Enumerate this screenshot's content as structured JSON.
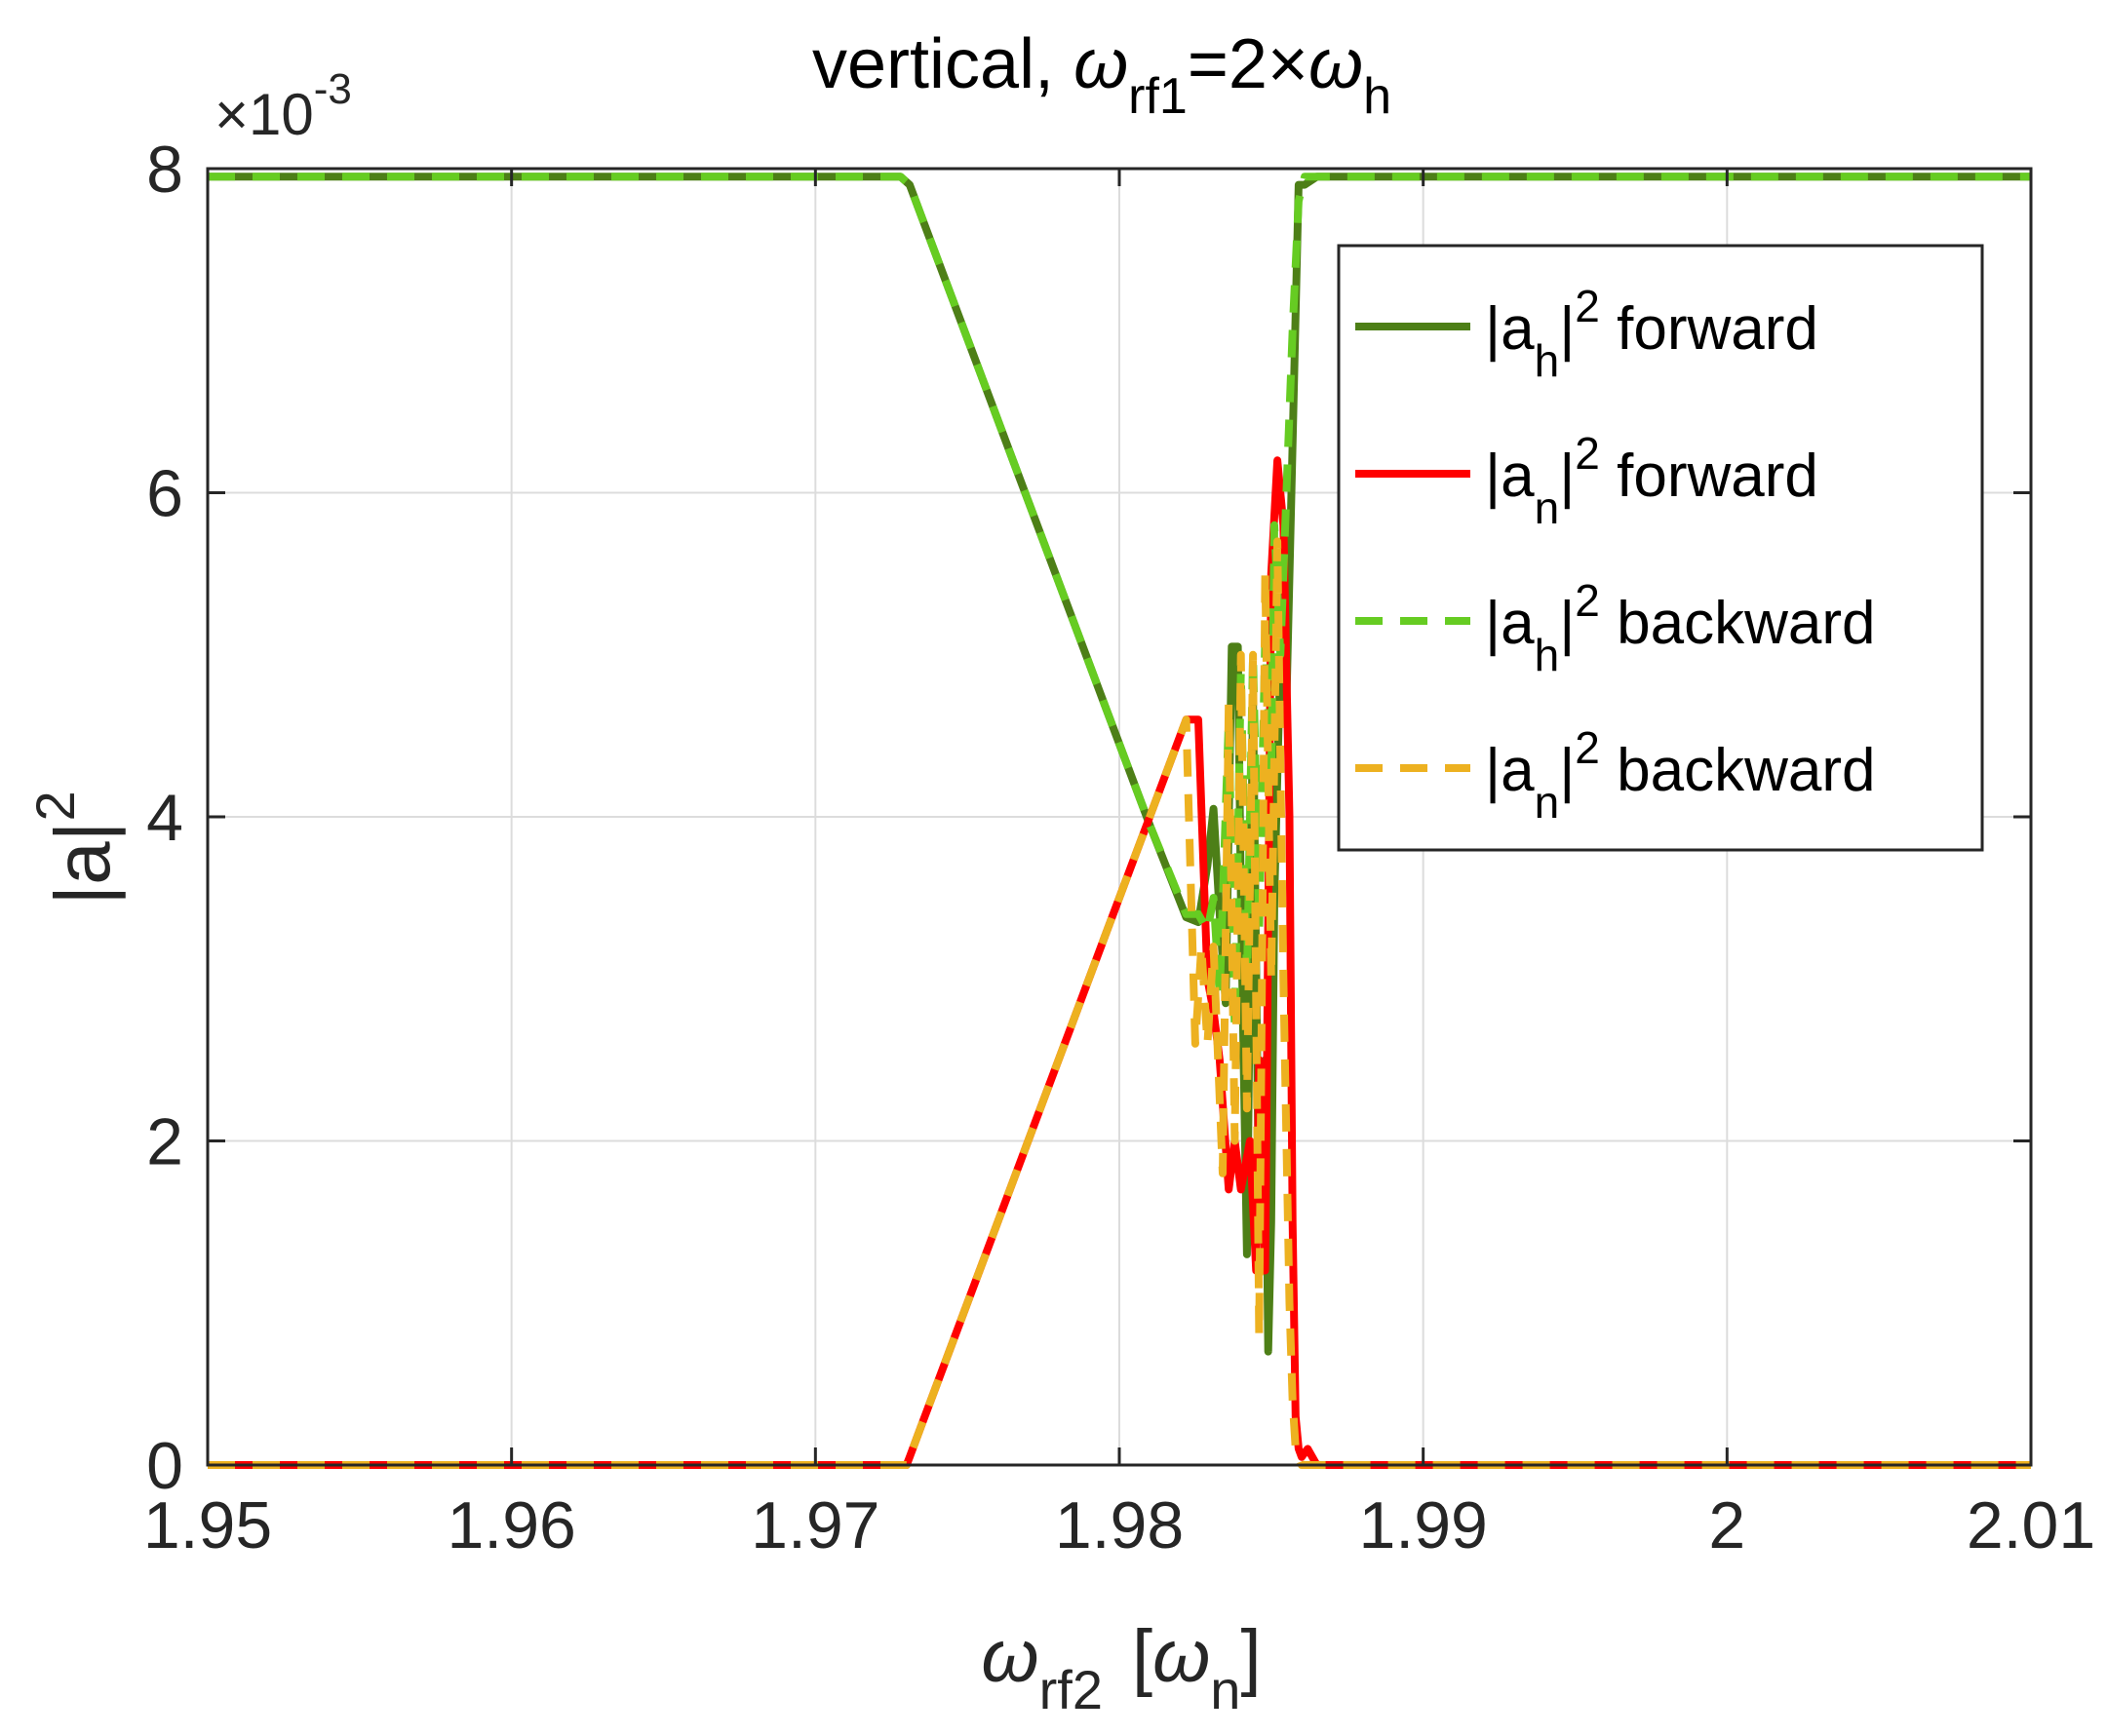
{
  "chart_data": {
    "type": "line",
    "title": {
      "prefix": "vertical, ",
      "omega": "ω",
      "sub1": "rf1",
      "mid": "=2×",
      "omega2": "ω",
      "sub2": "h"
    },
    "xlabel": {
      "omega": "ω",
      "sub": "rf2",
      "bracket_open": "[",
      "omega2": "ω",
      "sub2": "n",
      "bracket_close": "]"
    },
    "ylabel": {
      "base": "|a|",
      "sup": "2"
    },
    "y_exponent": {
      "base": "×10",
      "sup": "-3"
    },
    "xlim": [
      1.95,
      2.01
    ],
    "ylim": [
      0,
      8
    ],
    "xticks": [
      1.95,
      1.96,
      1.97,
      1.98,
      1.99,
      2.0,
      2.01
    ],
    "xtick_labels": [
      "1.95",
      "1.96",
      "1.97",
      "1.98",
      "1.99",
      "2",
      "2.01"
    ],
    "yticks": [
      0,
      2,
      4,
      6,
      8
    ],
    "ytick_labels": [
      "0",
      "2",
      "4",
      "6",
      "8"
    ],
    "grid": true,
    "legend_position": "top-right",
    "series": [
      {
        "name": "forward",
        "legend": {
          "base": "|a",
          "sub": "h",
          "mid": "|",
          "sup": "2",
          "tail": " forward"
        },
        "color": "#4d7f17",
        "dash": "solid",
        "x": [
          1.95,
          1.9728,
          1.9731,
          1.9735,
          1.9745,
          1.9755,
          1.9765,
          1.9775,
          1.9785,
          1.9795,
          1.98,
          1.981,
          1.9822,
          1.9826,
          1.9829,
          1.9831,
          1.9833,
          1.9835,
          1.9837,
          1.9839,
          1.984,
          1.9842,
          1.9844,
          1.9846,
          1.9848,
          1.9849,
          1.985,
          1.9851,
          1.9853,
          1.9855,
          1.9857,
          1.9859,
          1.9861,
          1.9865,
          2.01
        ],
        "y": [
          7.95,
          7.95,
          7.9,
          7.7,
          7.2,
          6.7,
          6.2,
          5.7,
          5.2,
          4.7,
          4.45,
          3.95,
          3.38,
          3.35,
          3.7,
          4.05,
          3.4,
          2.85,
          5.05,
          5.05,
          3.5,
          1.3,
          4.75,
          1.5,
          2.5,
          0.7,
          1.5,
          3.5,
          5.0,
          4.7,
          6.3,
          7.9,
          7.9,
          7.95,
          7.95
        ]
      },
      {
        "name": "forward",
        "legend": {
          "base": "|a",
          "sub": "n",
          "mid": "|",
          "sup": "2",
          "tail": " forward"
        },
        "color": "#ff0000",
        "dash": "solid",
        "x": [
          1.95,
          1.973,
          1.9731,
          1.9735,
          1.9745,
          1.9755,
          1.9765,
          1.9775,
          1.9785,
          1.9795,
          1.98,
          1.981,
          1.9822,
          1.9826,
          1.9829,
          1.9831,
          1.9833,
          1.9836,
          1.9838,
          1.984,
          1.9843,
          1.9845,
          1.9846,
          1.9848,
          1.985,
          1.9852,
          1.9854,
          1.9856,
          1.9857,
          1.9858,
          1.9859,
          1.986,
          1.9862,
          1.9865,
          2.01
        ],
        "y": [
          0.0,
          0.0,
          0.05,
          0.25,
          0.75,
          1.25,
          1.75,
          2.25,
          2.75,
          3.25,
          3.5,
          4.0,
          4.6,
          4.6,
          3.0,
          2.8,
          2.5,
          1.7,
          2.0,
          1.7,
          2.0,
          1.2,
          2.5,
          1.2,
          5.5,
          6.2,
          5.8,
          4.0,
          1.5,
          0.3,
          0.1,
          0.05,
          0.1,
          0.0,
          0.0
        ]
      },
      {
        "name": "backward",
        "legend": {
          "base": "|a",
          "sub": "h",
          "mid": "|",
          "sup": "2",
          "tail": " backward"
        },
        "color": "#66cc22",
        "dash": "dashed",
        "x": [
          1.95,
          1.9728,
          1.9731,
          1.9735,
          1.9745,
          1.9755,
          1.9765,
          1.9775,
          1.9785,
          1.9795,
          1.98,
          1.981,
          1.9822,
          1.9826,
          1.9829,
          1.9831,
          1.9833,
          1.9836,
          1.9838,
          1.984,
          1.9842,
          1.9844,
          1.9846,
          1.9848,
          1.985,
          1.9851,
          1.9853,
          1.9855,
          1.9857,
          1.9859,
          1.9861,
          1.9865,
          2.01
        ],
        "y": [
          7.95,
          7.95,
          7.9,
          7.7,
          7.2,
          6.7,
          6.2,
          5.7,
          5.2,
          4.7,
          4.45,
          3.95,
          3.4,
          3.4,
          3.3,
          3.5,
          2.9,
          4.6,
          2.7,
          4.9,
          3.0,
          5.0,
          3.3,
          5.1,
          4.2,
          5.8,
          5.0,
          6.0,
          7.0,
          7.8,
          7.95,
          7.95,
          7.95
        ]
      },
      {
        "name": "backward",
        "legend": {
          "base": "|a",
          "sub": "n",
          "mid": "|",
          "sup": "2",
          "tail": " backward"
        },
        "color": "#edb120",
        "dash": "dashed",
        "x": [
          1.95,
          1.973,
          1.9731,
          1.9735,
          1.9745,
          1.9755,
          1.9765,
          1.9775,
          1.9785,
          1.9795,
          1.98,
          1.981,
          1.9822,
          1.9825,
          1.9827,
          1.9829,
          1.9831,
          1.9834,
          1.9836,
          1.9838,
          1.984,
          1.9842,
          1.9844,
          1.9846,
          1.9848,
          1.985,
          1.9852,
          1.9854,
          1.9856,
          1.9857,
          1.9858,
          1.986,
          1.9865,
          2.01
        ],
        "y": [
          0.0,
          0.0,
          0.05,
          0.25,
          0.75,
          1.25,
          1.75,
          2.25,
          2.75,
          3.25,
          3.5,
          4.0,
          4.6,
          2.6,
          3.2,
          2.6,
          3.2,
          1.8,
          4.7,
          2.0,
          5.0,
          2.2,
          5.0,
          0.8,
          5.5,
          3.0,
          5.7,
          3.0,
          1.0,
          0.4,
          0.1,
          0.0,
          0.0,
          0.0
        ]
      }
    ]
  }
}
